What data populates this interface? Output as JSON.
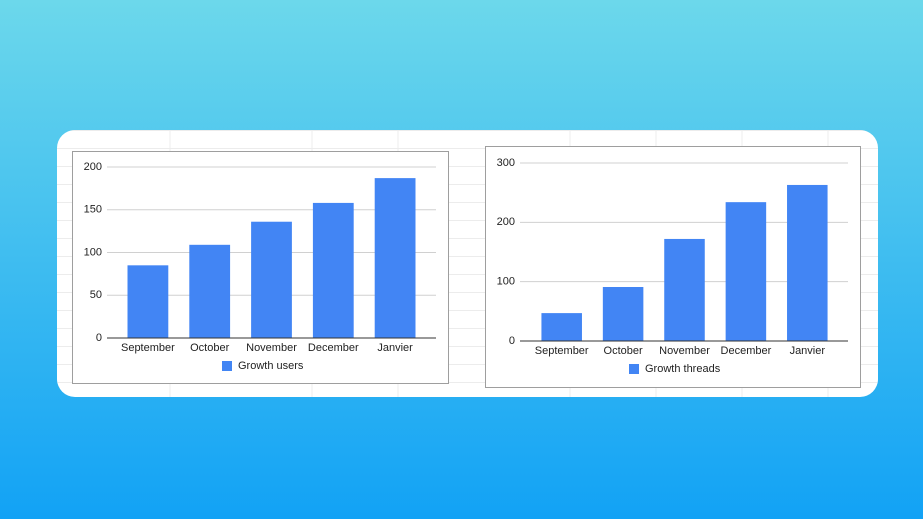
{
  "chart_data": [
    {
      "type": "bar",
      "categories": [
        "September",
        "October",
        "November",
        "December",
        "Janvier"
      ],
      "series": [
        {
          "name": "Growth users",
          "color": "#4285f4",
          "values": [
            85,
            109,
            136,
            158,
            187
          ]
        }
      ],
      "ylim": [
        0,
        200
      ],
      "yticks": [
        0,
        50,
        100,
        150,
        200
      ],
      "grid": true,
      "legend": "bottom"
    },
    {
      "type": "bar",
      "categories": [
        "September",
        "October",
        "November",
        "December",
        "Janvier"
      ],
      "series": [
        {
          "name": "Growth threads",
          "color": "#4285f4",
          "values": [
            47,
            91,
            172,
            234,
            263
          ]
        }
      ],
      "ylim": [
        0,
        300
      ],
      "yticks": [
        0,
        100,
        200,
        300
      ],
      "grid": true,
      "legend": "bottom"
    }
  ]
}
